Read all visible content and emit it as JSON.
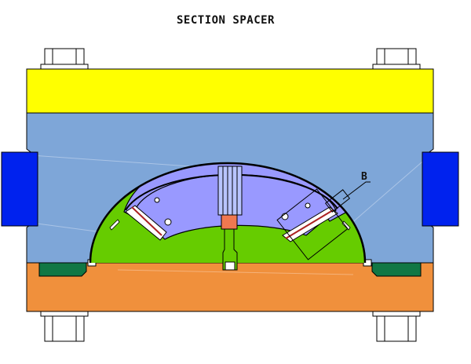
{
  "title": "SECTION SPACER",
  "callout_label": "B",
  "colors": {
    "top_plate": "#ffff00",
    "upper_block": "#7ea6d8",
    "lower_block": "#f0903c",
    "side_blocks": "#0022ee",
    "center_part": "#66cc00",
    "spacer_segments": "#9999ff",
    "seals": "#117744",
    "center_pin": "#f07850",
    "outline": "#000000"
  }
}
